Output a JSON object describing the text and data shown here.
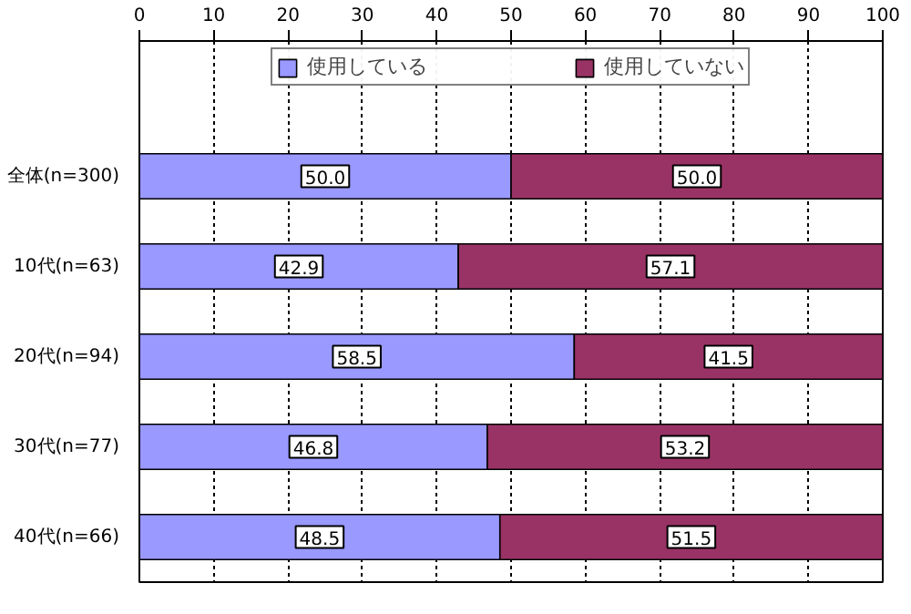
{
  "chart_data": {
    "type": "bar",
    "orientation": "horizontal",
    "stacked": true,
    "categories": [
      "全体(n=300)",
      "10代(n=63)",
      "20代(n=94)",
      "30代(n=77)",
      "40代(n=66)"
    ],
    "series": [
      {
        "name": "使用している",
        "color": "#9999ff",
        "values": [
          50.0,
          42.9,
          58.5,
          46.8,
          48.5
        ],
        "value_labels": [
          "50.0",
          "42.9",
          "58.5",
          "46.8",
          "48.5"
        ]
      },
      {
        "name": "使用していない",
        "color": "#993366",
        "values": [
          50.0,
          57.1,
          41.5,
          53.2,
          51.5
        ],
        "value_labels": [
          "50.0",
          "57.1",
          "41.5",
          "53.2",
          "51.5"
        ]
      }
    ],
    "xlim": [
      0,
      100
    ],
    "xticks": [
      0,
      10,
      20,
      30,
      40,
      50,
      60,
      70,
      80,
      90,
      100
    ],
    "grid": "x",
    "legend": "top"
  }
}
